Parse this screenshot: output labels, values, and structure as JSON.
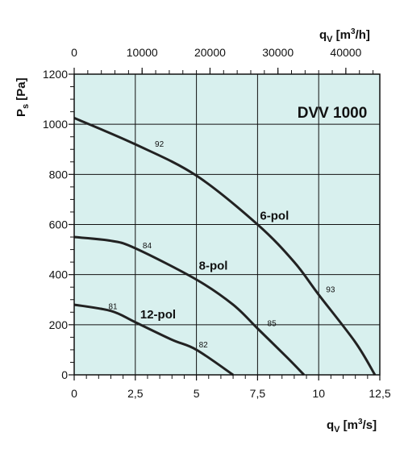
{
  "chart_data": {
    "type": "line",
    "title": "DVV 1000",
    "xlabel": "qV [m3/s]",
    "ylabel": "Ps [Pa]",
    "x2label": "qV [m3/h]",
    "xlim": [
      0,
      12.5
    ],
    "ylim": [
      0,
      1200
    ],
    "x2lim": [
      0,
      45000
    ],
    "x_ticks": [
      "0",
      "2,5",
      "5",
      "7,5",
      "10",
      "12,5"
    ],
    "x_tick_values": [
      0,
      2.5,
      5,
      7.5,
      10,
      12.5
    ],
    "y_ticks": [
      "0",
      "200",
      "400",
      "600",
      "800",
      "1000",
      "1200"
    ],
    "y_tick_values": [
      0,
      200,
      400,
      600,
      800,
      1000,
      1200
    ],
    "x2_ticks": [
      "0",
      "10000",
      "20000",
      "30000",
      "40000"
    ],
    "x2_tick_values": [
      0,
      10000,
      20000,
      30000,
      40000
    ],
    "grid": true,
    "background": "#d8f0ee",
    "series": [
      {
        "name": "6-pol",
        "points": [
          [
            0,
            1025
          ],
          [
            2.5,
            920
          ],
          [
            5,
            795
          ],
          [
            7.5,
            600
          ],
          [
            9,
            450
          ],
          [
            10,
            320
          ],
          [
            11.5,
            130
          ],
          [
            12.3,
            0
          ]
        ],
        "efficiency_marks": [
          {
            "label": "92",
            "x": 3.3,
            "y": 910
          },
          {
            "label": "93",
            "x": 10.3,
            "y": 330
          }
        ]
      },
      {
        "name": "8-pol",
        "points": [
          [
            0,
            550
          ],
          [
            1.5,
            535
          ],
          [
            2.5,
            505
          ],
          [
            5,
            380
          ],
          [
            6.5,
            280
          ],
          [
            7.5,
            185
          ],
          [
            8.7,
            70
          ],
          [
            9.4,
            0
          ]
        ],
        "efficiency_marks": [
          {
            "label": "84",
            "x": 2.8,
            "y": 505
          },
          {
            "label": "85",
            "x": 7.9,
            "y": 195
          }
        ]
      },
      {
        "name": "12-pol",
        "points": [
          [
            0,
            280
          ],
          [
            1.5,
            255
          ],
          [
            2.5,
            210
          ],
          [
            4,
            140
          ],
          [
            5,
            100
          ],
          [
            6.5,
            0
          ]
        ],
        "efficiency_marks": [
          {
            "label": "81",
            "x": 1.4,
            "y": 262
          },
          {
            "label": "82",
            "x": 5.1,
            "y": 110
          }
        ]
      }
    ],
    "curve_labels": [
      {
        "text": "6-pol",
        "x": 7.6,
        "y": 620
      },
      {
        "text": "8-pol",
        "x": 5.1,
        "y": 420
      },
      {
        "text": "12-pol",
        "x": 2.7,
        "y": 225
      }
    ]
  }
}
